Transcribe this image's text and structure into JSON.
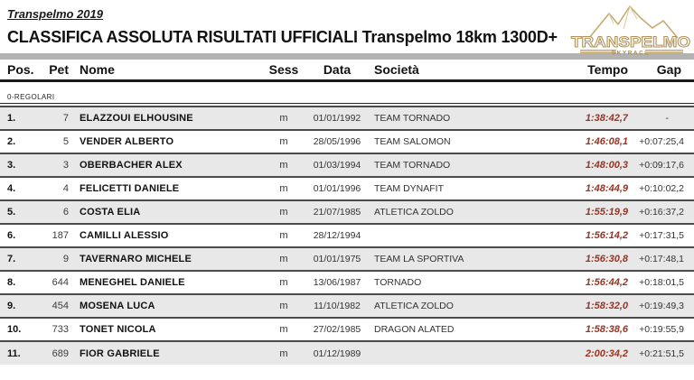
{
  "header": {
    "event": "Transpelmo 2019",
    "title": "CLASSIFICA ASSOLUTA RISULTATI UFFICIALI Transpelmo 18km 1300D+",
    "logo": {
      "wordmark": "TRANSPELMO",
      "subtitle": "SKYRACE"
    }
  },
  "colors": {
    "tempo_red": "#993322",
    "logo_gold": "#bfa063",
    "divider_gray": "#b2b2b2",
    "row_alt_gray": "#e8e8e8"
  },
  "table": {
    "columns": [
      "Pos.",
      "Pet",
      "Nome",
      "Sess",
      "Data",
      "Società",
      "Tempo",
      "Gap"
    ],
    "category_label": "0-REGOLARI",
    "rows": [
      {
        "pos": "1.",
        "pet": "7",
        "nome": "ELAZZOUI ELHOUSINE",
        "sess": "m",
        "data": "01/01/1992",
        "societa": "TEAM TORNADO",
        "tempo": "1:38:42,7",
        "gap": "-"
      },
      {
        "pos": "2.",
        "pet": "5",
        "nome": "VENDER ALBERTO",
        "sess": "m",
        "data": "28/05/1996",
        "societa": "TEAM SALOMON",
        "tempo": "1:46:08,1",
        "gap": "+0:07:25,4"
      },
      {
        "pos": "3.",
        "pet": "3",
        "nome": "OBERBACHER ALEX",
        "sess": "m",
        "data": "01/03/1994",
        "societa": "TEAM TORNADO",
        "tempo": "1:48:00,3",
        "gap": "+0:09:17,6"
      },
      {
        "pos": "4.",
        "pet": "4",
        "nome": "FELICETTI DANIELE",
        "sess": "m",
        "data": "01/01/1996",
        "societa": "TEAM DYNAFIT",
        "tempo": "1:48:44,9",
        "gap": "+0:10:02,2"
      },
      {
        "pos": "5.",
        "pet": "6",
        "nome": "COSTA ELIA",
        "sess": "m",
        "data": "21/07/1985",
        "societa": "ATLETICA ZOLDO",
        "tempo": "1:55:19,9",
        "gap": "+0:16:37,2"
      },
      {
        "pos": "6.",
        "pet": "187",
        "nome": "CAMILLI ALESSIO",
        "sess": "m",
        "data": "28/12/1994",
        "societa": "",
        "tempo": "1:56:14,2",
        "gap": "+0:17:31,5"
      },
      {
        "pos": "7.",
        "pet": "9",
        "nome": "TAVERNARO MICHELE",
        "sess": "m",
        "data": "01/01/1975",
        "societa": "TEAM LA SPORTIVA",
        "tempo": "1:56:30,8",
        "gap": "+0:17:48,1"
      },
      {
        "pos": "8.",
        "pet": "644",
        "nome": "MENEGHEL DANIELE",
        "sess": "m",
        "data": "13/06/1987",
        "societa": "TORNADO",
        "tempo": "1:56:44,2",
        "gap": "+0:18:01,5"
      },
      {
        "pos": "9.",
        "pet": "454",
        "nome": "MOSENA LUCA",
        "sess": "m",
        "data": "11/10/1982",
        "societa": "ATLETICA ZOLDO",
        "tempo": "1:58:32,0",
        "gap": "+0:19:49,3"
      },
      {
        "pos": "10.",
        "pet": "733",
        "nome": "TONET NICOLA",
        "sess": "m",
        "data": "27/02/1985",
        "societa": "DRAGON ALATED",
        "tempo": "1:58:38,6",
        "gap": "+0:19:55,9"
      },
      {
        "pos": "11.",
        "pet": "689",
        "nome": "FIOR GABRIELE",
        "sess": "m",
        "data": "01/12/1989",
        "societa": "",
        "tempo": "2:00:34,2",
        "gap": "+0:21:51,5"
      }
    ]
  }
}
